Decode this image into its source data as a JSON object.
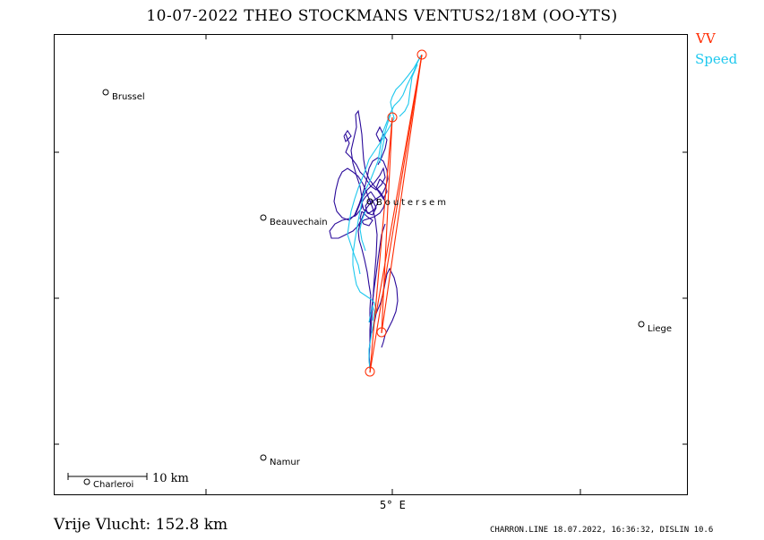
{
  "title": "10-07-2022   THEO STOCKMANS   VENTUS2/18M (OO-YTS)",
  "legend": {
    "vv": "VV",
    "speed": "Speed"
  },
  "axis": {
    "x_tick_label": "5° E"
  },
  "scale_bar": "10  km",
  "cities": [
    "Brussel",
    "Beauvechain",
    "Boutersem",
    "Liege",
    "Namur",
    "Charleroi"
  ],
  "distance_text": "Vrije Vlucht:  152.8 km",
  "footer_meta": "CHARRON.LINE 18.07.2022, 16:36:32, DISLIN 10.6",
  "colors": {
    "track": "#2a0a9a",
    "vv": "#ff2a00",
    "speed": "#1ec8ee",
    "frame": "#000000"
  }
}
